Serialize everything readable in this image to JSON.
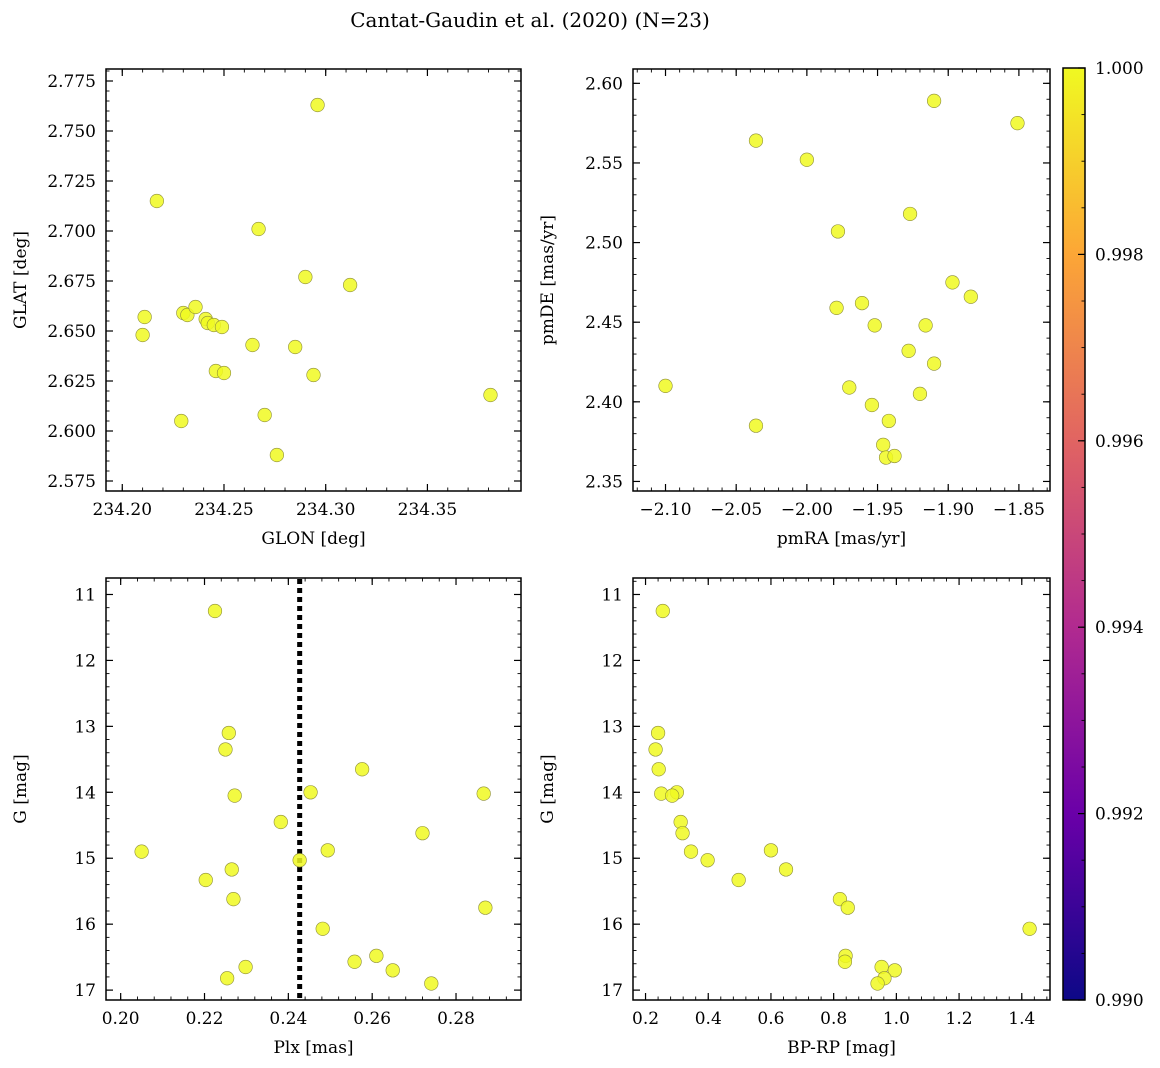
{
  "title": "Cantat-Gaudin et al. (2020) (N=23)",
  "colors": {
    "point": "#f0f921",
    "colormap": "plasma",
    "reference_line": "#000000"
  },
  "colorbar": {
    "range": [
      0.99,
      1.0
    ],
    "ticks": [
      "0.990",
      "0.992",
      "0.994",
      "0.996",
      "0.998",
      "1.000"
    ],
    "tick_values": [
      0.99,
      0.992,
      0.994,
      0.996,
      0.998,
      1.0
    ],
    "stops": [
      "#0d0887",
      "#6a00a8",
      "#b12a90",
      "#e16462",
      "#fca636",
      "#f0f921"
    ]
  },
  "chart_data": [
    {
      "type": "scatter",
      "xlabel": "GLON [deg]",
      "ylabel": "GLAT [deg]",
      "xlim": [
        234.192,
        234.396
      ],
      "ylim": [
        2.57,
        2.781
      ],
      "xticks": [
        234.2,
        234.25,
        234.3,
        234.35
      ],
      "xtick_labels": [
        "234.20",
        "234.25",
        "234.30",
        "234.35"
      ],
      "yticks": [
        2.575,
        2.6,
        2.625,
        2.65,
        2.675,
        2.7,
        2.725,
        2.75,
        2.775
      ],
      "ytick_labels": [
        "2.575",
        "2.600",
        "2.625",
        "2.650",
        "2.675",
        "2.700",
        "2.725",
        "2.750",
        "2.775"
      ],
      "y_inverted": false,
      "x": [
        234.296,
        234.217,
        234.267,
        234.29,
        234.312,
        234.211,
        234.21,
        234.23,
        234.232,
        234.236,
        234.241,
        234.242,
        234.245,
        234.249,
        234.264,
        234.285,
        234.246,
        234.25,
        234.294,
        234.381,
        234.27,
        234.229,
        234.276
      ],
      "y": [
        2.763,
        2.715,
        2.701,
        2.677,
        2.673,
        2.657,
        2.648,
        2.659,
        2.658,
        2.662,
        2.656,
        2.654,
        2.653,
        2.652,
        2.643,
        2.642,
        2.63,
        2.629,
        2.628,
        2.618,
        2.608,
        2.605,
        2.588
      ]
    },
    {
      "type": "scatter",
      "xlabel": "pmRA [mas/yr]",
      "ylabel": "pmDE [mas/yr]",
      "xlim": [
        -2.123,
        -1.828
      ],
      "ylim": [
        2.344,
        2.609
      ],
      "xticks": [
        -2.1,
        -2.05,
        -2.0,
        -1.95,
        -1.9,
        -1.85
      ],
      "xtick_labels": [
        "−2.10",
        "−2.05",
        "−2.00",
        "−1.95",
        "−1.90",
        "−1.85"
      ],
      "yticks": [
        2.35,
        2.4,
        2.45,
        2.5,
        2.55,
        2.6
      ],
      "ytick_labels": [
        "2.35",
        "2.40",
        "2.45",
        "2.50",
        "2.55",
        "2.60"
      ],
      "y_inverted": false,
      "x": [
        -1.91,
        -1.851,
        -2.036,
        -2.0,
        -1.927,
        -1.978,
        -1.897,
        -1.884,
        -1.961,
        -1.979,
        -1.952,
        -1.916,
        -1.928,
        -1.91,
        -1.97,
        -1.92,
        -1.954,
        -1.942,
        -2.1,
        -2.036,
        -1.946,
        -1.944,
        -1.938
      ],
      "y": [
        2.589,
        2.575,
        2.564,
        2.552,
        2.518,
        2.507,
        2.475,
        2.466,
        2.462,
        2.459,
        2.448,
        2.448,
        2.432,
        2.424,
        2.409,
        2.405,
        2.398,
        2.388,
        2.41,
        2.385,
        2.373,
        2.365,
        2.366
      ]
    },
    {
      "type": "scatter",
      "xlabel": "Plx [mas]",
      "ylabel": "G [mag]",
      "xlim": [
        0.1965,
        0.2955
      ],
      "ylim": [
        17.15,
        10.75
      ],
      "xticks": [
        0.2,
        0.22,
        0.24,
        0.26,
        0.28
      ],
      "xtick_labels": [
        "0.20",
        "0.22",
        "0.24",
        "0.26",
        "0.28"
      ],
      "yticks": [
        11,
        12,
        13,
        14,
        15,
        16,
        17
      ],
      "ytick_labels": [
        "11",
        "12",
        "13",
        "14",
        "15",
        "16",
        "17"
      ],
      "y_inverted": true,
      "vline": 0.2427,
      "x": [
        0.2225,
        0.2258,
        0.225,
        0.2576,
        0.2272,
        0.2453,
        0.2866,
        0.2382,
        0.272,
        0.205,
        0.2494,
        0.2427,
        0.2265,
        0.2203,
        0.2269,
        0.287,
        0.2482,
        0.261,
        0.2558,
        0.2649,
        0.2298,
        0.2254,
        0.2741
      ],
      "y": [
        11.25,
        13.1,
        13.35,
        13.65,
        14.05,
        14.0,
        14.02,
        14.45,
        14.62,
        14.9,
        14.88,
        15.03,
        15.17,
        15.33,
        15.62,
        15.75,
        16.07,
        16.48,
        16.57,
        16.7,
        16.65,
        16.82,
        16.9
      ]
    },
    {
      "type": "scatter",
      "xlabel": "BP-RP [mag]",
      "ylabel": "G [mag]",
      "xlim": [
        0.16,
        1.49
      ],
      "ylim": [
        17.15,
        10.75
      ],
      "xticks": [
        0.2,
        0.4,
        0.6,
        0.8,
        1.0,
        1.2,
        1.4
      ],
      "xtick_labels": [
        "0.2",
        "0.4",
        "0.6",
        "0.8",
        "1.0",
        "1.2",
        "1.4"
      ],
      "yticks": [
        11,
        12,
        13,
        14,
        15,
        16,
        17
      ],
      "ytick_labels": [
        "11",
        "12",
        "13",
        "14",
        "15",
        "16",
        "17"
      ],
      "y_inverted": true,
      "x": [
        0.255,
        0.24,
        0.232,
        0.242,
        0.25,
        0.3,
        0.285,
        0.312,
        0.318,
        0.345,
        0.398,
        0.497,
        0.6,
        0.648,
        0.82,
        0.845,
        0.838,
        0.836,
        0.953,
        0.995,
        0.962,
        0.94,
        1.425
      ],
      "y": [
        11.25,
        13.1,
        13.35,
        13.65,
        14.02,
        14.0,
        14.05,
        14.45,
        14.62,
        14.9,
        15.03,
        15.33,
        14.88,
        15.17,
        15.62,
        15.75,
        16.48,
        16.57,
        16.65,
        16.7,
        16.82,
        16.9,
        16.07
      ]
    }
  ]
}
